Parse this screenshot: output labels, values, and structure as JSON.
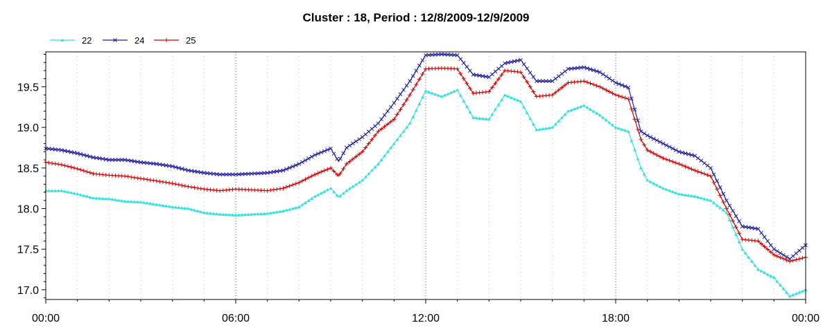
{
  "chart_data": {
    "type": "line",
    "title": "Cluster : 18, Period : 12/8/2009-12/9/2009",
    "xlabel": "",
    "ylabel": "",
    "x_tick_labels": [
      "00:00",
      "06:00",
      "12:00",
      "18:00",
      "00:00"
    ],
    "x_tick_hours": [
      0,
      6,
      12,
      18,
      24
    ],
    "xlim_hours": [
      0,
      24
    ],
    "ylim": [
      16.88,
      19.93
    ],
    "y_ticks": [
      17.0,
      17.5,
      18.0,
      18.5,
      19.0,
      19.5
    ],
    "y_tick_labels": [
      "17.0",
      "17.5",
      "18.0",
      "18.5",
      "19.0",
      "19.5"
    ],
    "grid": "dotted vertical at 06:00, 12:00, 18:00",
    "legend_position": "top-left",
    "x_hours": [
      0,
      0.5,
      1,
      1.5,
      2,
      2.5,
      3,
      3.5,
      4,
      4.5,
      5,
      5.5,
      6,
      6.5,
      7,
      7.5,
      8,
      8.5,
      9,
      9.25,
      9.5,
      10,
      10.5,
      11,
      11.5,
      12,
      12.5,
      13,
      13.5,
      14,
      14.5,
      15,
      15.5,
      16,
      16.5,
      17,
      17.5,
      18,
      18.4,
      18.8,
      19,
      19.5,
      20,
      20.5,
      21,
      21.5,
      22,
      22.5,
      23,
      23.5,
      24
    ],
    "series": [
      {
        "name": "22",
        "color": "#33e0e0",
        "marker": "triangle",
        "values": [
          18.22,
          18.22,
          18.18,
          18.13,
          18.12,
          18.09,
          18.08,
          18.05,
          18.02,
          18.0,
          17.95,
          17.93,
          17.92,
          17.93,
          17.94,
          17.97,
          18.02,
          18.15,
          18.25,
          18.14,
          18.22,
          18.35,
          18.55,
          18.8,
          19.05,
          19.45,
          19.38,
          19.46,
          19.12,
          19.1,
          19.4,
          19.32,
          18.97,
          19.0,
          19.2,
          19.27,
          19.15,
          19.0,
          18.95,
          18.5,
          18.35,
          18.25,
          18.18,
          18.15,
          18.1,
          17.95,
          17.5,
          17.25,
          17.15,
          16.92,
          17.0
        ]
      },
      {
        "name": "24",
        "color": "#1a1aa0",
        "marker": "x",
        "values": [
          18.74,
          18.72,
          18.68,
          18.63,
          18.6,
          18.6,
          18.57,
          18.55,
          18.52,
          18.47,
          18.44,
          18.42,
          18.42,
          18.43,
          18.44,
          18.47,
          18.55,
          18.66,
          18.74,
          18.58,
          18.75,
          18.88,
          19.05,
          19.3,
          19.57,
          19.89,
          19.9,
          19.89,
          19.65,
          19.62,
          19.79,
          19.83,
          19.57,
          19.57,
          19.72,
          19.74,
          19.68,
          19.55,
          19.49,
          18.95,
          18.9,
          18.8,
          18.7,
          18.65,
          18.5,
          18.1,
          17.78,
          17.75,
          17.5,
          17.38,
          17.55
        ]
      },
      {
        "name": "25",
        "color": "#cc0000",
        "marker": "plus",
        "values": [
          18.57,
          18.54,
          18.49,
          18.43,
          18.41,
          18.4,
          18.37,
          18.34,
          18.31,
          18.27,
          18.24,
          18.22,
          18.24,
          18.23,
          18.22,
          18.25,
          18.32,
          18.42,
          18.5,
          18.4,
          18.55,
          18.7,
          18.95,
          19.1,
          19.4,
          19.72,
          19.73,
          19.72,
          19.42,
          19.44,
          19.7,
          19.68,
          19.38,
          19.4,
          19.55,
          19.57,
          19.5,
          19.4,
          19.35,
          18.85,
          18.72,
          18.62,
          18.55,
          18.47,
          18.4,
          18.0,
          17.62,
          17.6,
          17.43,
          17.35,
          17.4
        ]
      }
    ]
  }
}
